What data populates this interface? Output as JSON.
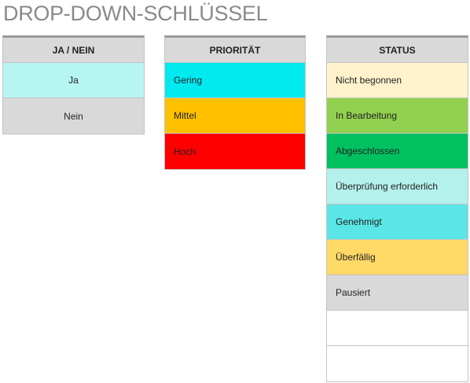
{
  "title": "DROP-DOWN-SCHLÜSSEL",
  "tables": {
    "yesno": {
      "header": "JA / NEIN",
      "rows": [
        {
          "label": "Ja",
          "color": "#b6f5f2"
        },
        {
          "label": "Nein",
          "color": "#d9d9d9"
        }
      ]
    },
    "priority": {
      "header": "PRIORITÄT",
      "rows": [
        {
          "label": "Gering",
          "color": "#00eaf0"
        },
        {
          "label": "Mittel",
          "color": "#ffc000"
        },
        {
          "label": "Hoch",
          "color": "#ff0000"
        }
      ]
    },
    "status": {
      "header": "STATUS",
      "rows": [
        {
          "label": "Nicht begonnen",
          "color": "#fff2cc"
        },
        {
          "label": "In Bearbeitung",
          "color": "#92d050"
        },
        {
          "label": "Abgeschlossen",
          "color": "#00c060"
        },
        {
          "label": "Überprüfung erforderlich",
          "color": "#b4f0ec"
        },
        {
          "label": "Genehmigt",
          "color": "#5ae6e6"
        },
        {
          "label": "Überfällig",
          "color": "#ffd966"
        },
        {
          "label": "Pausiert",
          "color": "#d9d9d9"
        },
        {
          "label": "",
          "color": "#ffffff"
        },
        {
          "label": "",
          "color": "#ffffff"
        }
      ]
    }
  }
}
